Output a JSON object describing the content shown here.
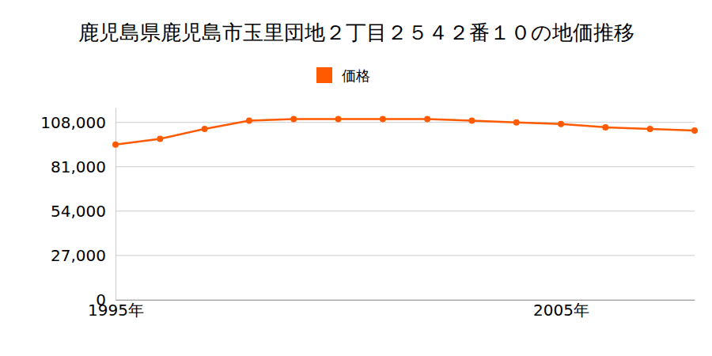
{
  "chart_data": {
    "type": "line",
    "title": "鹿児島県鹿児島市玉里団地２丁目２５４２番１０の地価推移",
    "x": [
      1995,
      1996,
      1997,
      1998,
      1999,
      2000,
      2001,
      2002,
      2003,
      2004,
      2005,
      2006,
      2007,
      2008
    ],
    "series": [
      {
        "name": "価格",
        "color": "#ff5a00",
        "marker": "circle",
        "values": [
          94500,
          98000,
          104000,
          109000,
          110000,
          110000,
          110000,
          110000,
          109000,
          108000,
          107000,
          105000,
          104000,
          103000
        ]
      }
    ],
    "xlim": [
      1995,
      2008
    ],
    "xticks": [
      {
        "value": 1995,
        "label": "1995年"
      },
      {
        "value": 2005,
        "label": "2005年"
      }
    ],
    "ylim": [
      0,
      117000
    ],
    "yticks": [
      {
        "value": 0,
        "label": "0"
      },
      {
        "value": 27000,
        "label": "27,000"
      },
      {
        "value": 54000,
        "label": "54,000"
      },
      {
        "value": 81000,
        "label": "81,000"
      },
      {
        "value": 108000,
        "label": "108,000"
      }
    ],
    "grid": true,
    "legend": "top"
  }
}
